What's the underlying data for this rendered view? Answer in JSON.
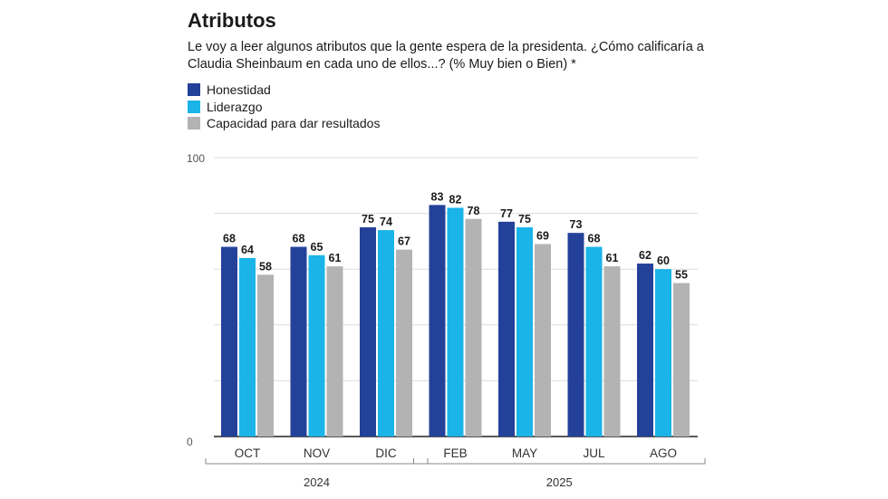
{
  "chart_data": {
    "type": "bar",
    "title": "Atributos",
    "subtitle": "Le voy a leer algunos atributos que la gente espera de la presidenta. ¿Cómo calificaría a Claudia Sheinbaum en cada uno de ellos...? (% Muy bien o Bien) *",
    "categories": [
      "OCT",
      "NOV",
      "DIC",
      "FEB",
      "MAY",
      "JUL",
      "AGO"
    ],
    "year_groups": [
      {
        "label": "2024",
        "categories": [
          "OCT",
          "NOV",
          "DIC"
        ]
      },
      {
        "label": "2025",
        "categories": [
          "FEB",
          "MAY",
          "JUL",
          "AGO"
        ]
      }
    ],
    "series": [
      {
        "name": "Honestidad",
        "color": "#24419a",
        "values": [
          68,
          68,
          75,
          83,
          77,
          73,
          62
        ]
      },
      {
        "name": "Liderazgo",
        "color": "#1ab4e8",
        "values": [
          64,
          65,
          74,
          82,
          75,
          68,
          60
        ]
      },
      {
        "name": "Capacidad para dar resultados",
        "color": "#b3b3b3",
        "values": [
          58,
          61,
          67,
          78,
          69,
          61,
          55
        ]
      }
    ],
    "ylim": [
      0,
      100
    ],
    "ytick_labels": [
      "100",
      "0"
    ],
    "grid": true,
    "xlabel": "",
    "ylabel": ""
  }
}
